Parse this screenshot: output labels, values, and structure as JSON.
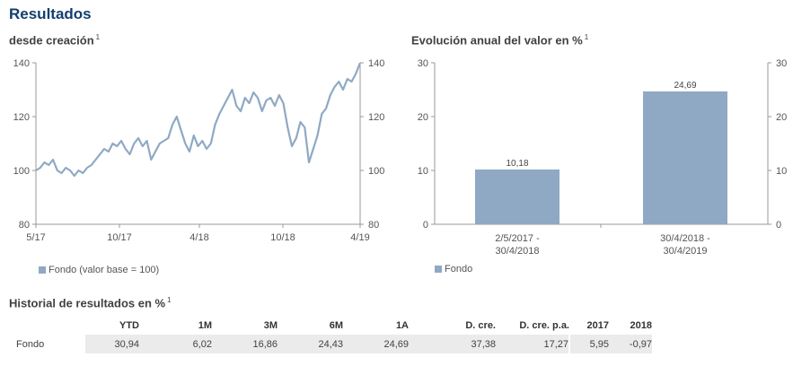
{
  "page_title": "Resultados",
  "left_chart": {
    "subtitle": "desde creación",
    "footnote": "1",
    "y_ticks": [
      "140",
      "120",
      "100",
      "80"
    ],
    "x_ticks": [
      "5/17",
      "10/17",
      "4/18",
      "10/18",
      "4/19"
    ],
    "legend": "Fondo (valor base = 100)",
    "color": "#8fa9c4"
  },
  "right_chart": {
    "subtitle": "Evolución anual del valor en %",
    "footnote": "1",
    "y_ticks": [
      "30",
      "20",
      "10",
      "0"
    ],
    "legend": "Fondo",
    "color": "#8fa9c4"
  },
  "chart_data": [
    {
      "type": "line",
      "title": "desde creación",
      "ylim": [
        80,
        140
      ],
      "x_ticks": [
        "5/17",
        "10/17",
        "4/18",
        "10/18",
        "4/19"
      ],
      "series": [
        {
          "name": "Fondo (valor base = 100)",
          "values": [
            100,
            101,
            103,
            102,
            104,
            100,
            99,
            101,
            100,
            98,
            100,
            99,
            101,
            102,
            104,
            106,
            108,
            107,
            110,
            109,
            111,
            108,
            106,
            110,
            112,
            109,
            111,
            104,
            107,
            110,
            111,
            112,
            117,
            120,
            115,
            110,
            107,
            113,
            109,
            111,
            108,
            110,
            117,
            121,
            124,
            127,
            130,
            124,
            122,
            127,
            125,
            129,
            127,
            122,
            126,
            127,
            124,
            128,
            125,
            116,
            109,
            112,
            118,
            116,
            103,
            108,
            113,
            121,
            123,
            128,
            131,
            133,
            130,
            134,
            133,
            136,
            140
          ]
        }
      ]
    },
    {
      "type": "bar",
      "title": "Evolución anual del valor en %",
      "categories": [
        "2/5/2017 - 30/4/2018",
        "30/4/2018 - 30/4/2019"
      ],
      "values": [
        10.18,
        24.69
      ],
      "value_labels": [
        "10,18",
        "24,69"
      ],
      "ylim": [
        0,
        30
      ]
    }
  ],
  "bar_labels": {
    "values": [
      "10,18",
      "24,69"
    ],
    "cat1_line1": "2/5/2017 -",
    "cat1_line2": "30/4/2018",
    "cat2_line1": "30/4/2018 -",
    "cat2_line2": "30/4/2019"
  },
  "history": {
    "title": "Historial de resultados en %",
    "footnote": "1",
    "headers": [
      "YTD",
      "1M",
      "3M",
      "6M",
      "1A",
      "D. cre.",
      "D. cre. p.a.",
      "2017",
      "2018"
    ],
    "row_label": "Fondo",
    "values": [
      "30,94",
      "6,02",
      "16,86",
      "24,43",
      "24,69",
      "37,38",
      "17,27",
      "5,95",
      "-0,97"
    ]
  }
}
